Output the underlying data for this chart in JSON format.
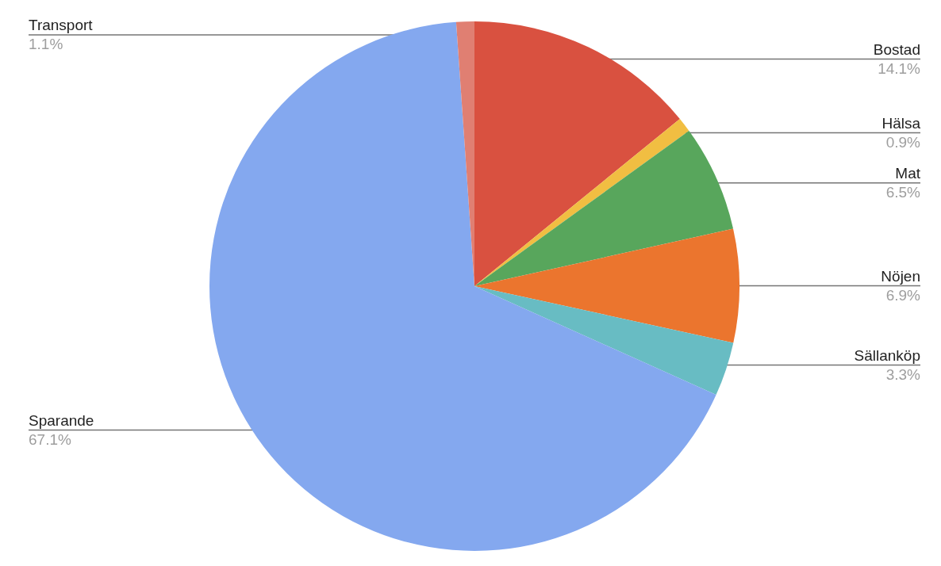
{
  "chart_data": {
    "type": "pie",
    "categories": [
      "Bostad",
      "Hälsa",
      "Mat",
      "Nöjen",
      "Sällanköp",
      "Sparande",
      "Transport"
    ],
    "values": [
      14.1,
      0.9,
      6.5,
      6.9,
      3.3,
      67.1,
      1.1
    ],
    "value_labels": [
      "14.1%",
      "0.9%",
      "6.5%",
      "6.9%",
      "3.3%",
      "67.1%",
      "1.1%"
    ],
    "colors": [
      "#d95140",
      "#f1be42",
      "#58a65c",
      "#eb752e",
      "#68bcc3",
      "#84a8ef",
      "#e07f72"
    ]
  }
}
